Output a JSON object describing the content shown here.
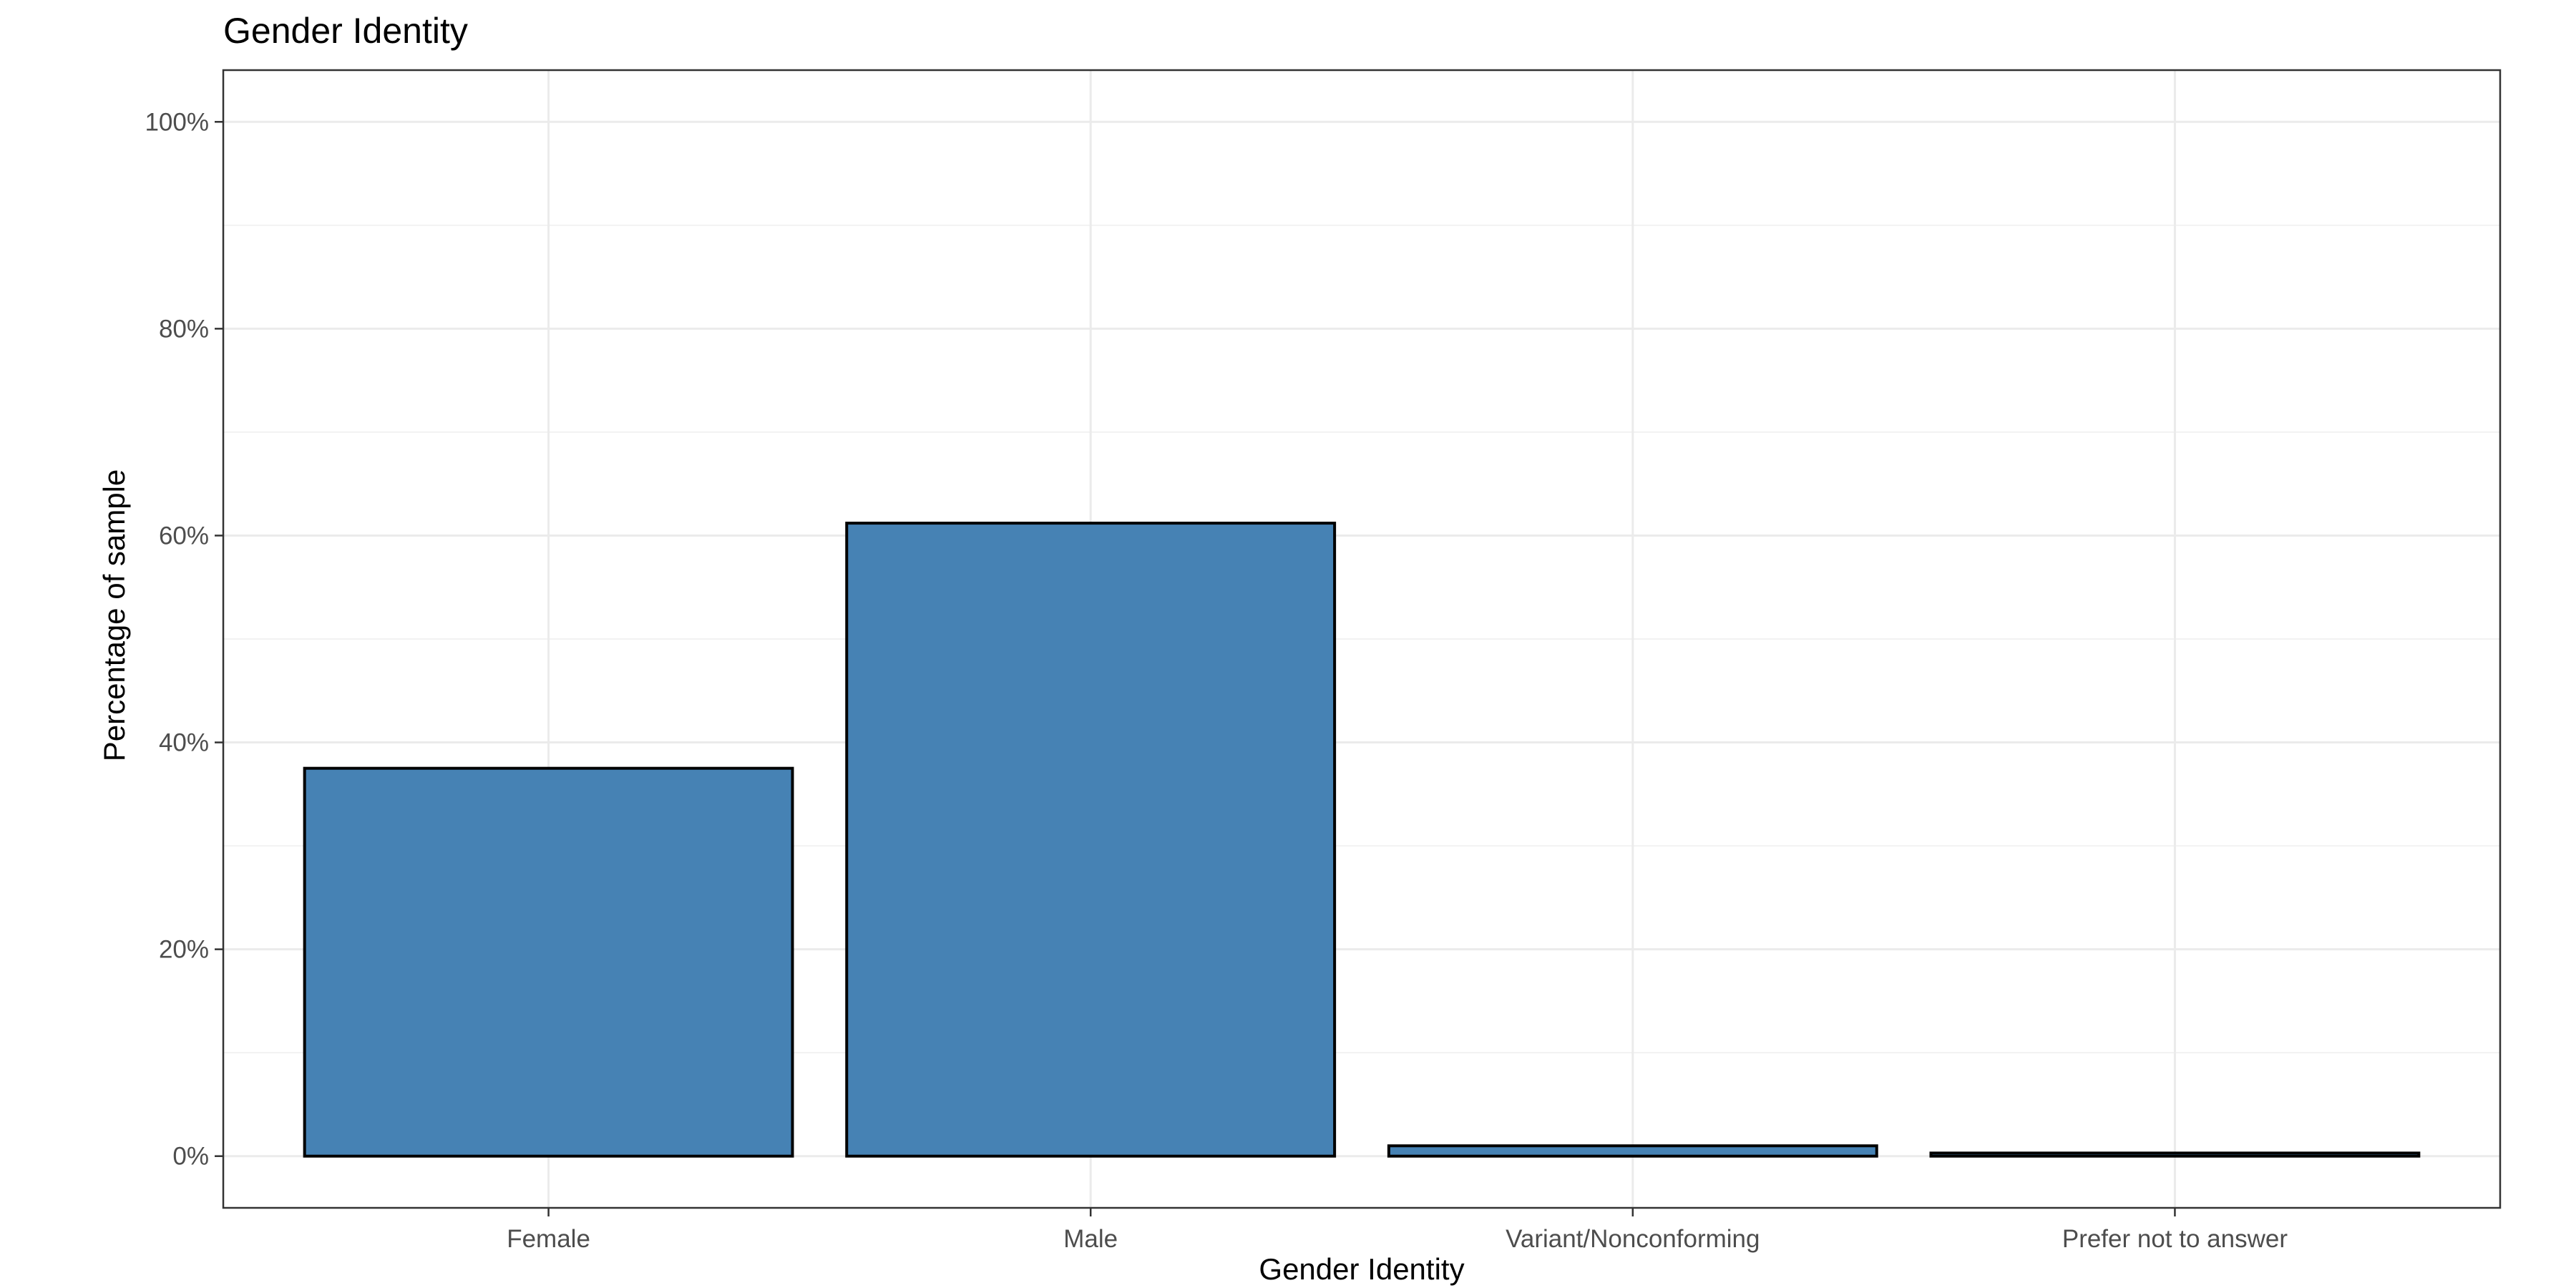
{
  "chart_data": {
    "type": "bar",
    "title": "Gender Identity",
    "xlabel": "Gender Identity",
    "ylabel": "Percentage of sample",
    "categories": [
      "Female",
      "Male",
      "Variant/Nonconforming",
      "Prefer not to answer"
    ],
    "values": [
      37.5,
      61.2,
      1.0,
      0.3
    ],
    "unit": "%",
    "ylim": [
      -5,
      105
    ],
    "yticks": [
      0,
      20,
      40,
      60,
      80,
      100
    ],
    "ytick_labels": [
      "0%",
      "20%",
      "40%",
      "60%",
      "80%",
      "100%"
    ],
    "grid": true,
    "legend": "none",
    "colors": {
      "bar_fill": "#4682B4",
      "bar_outline": "#000000",
      "grid_major": "#EBEBEB",
      "grid_minor": "#F2F2F2",
      "panel_border": "#333333",
      "tick_label": "#4D4D4D"
    }
  }
}
